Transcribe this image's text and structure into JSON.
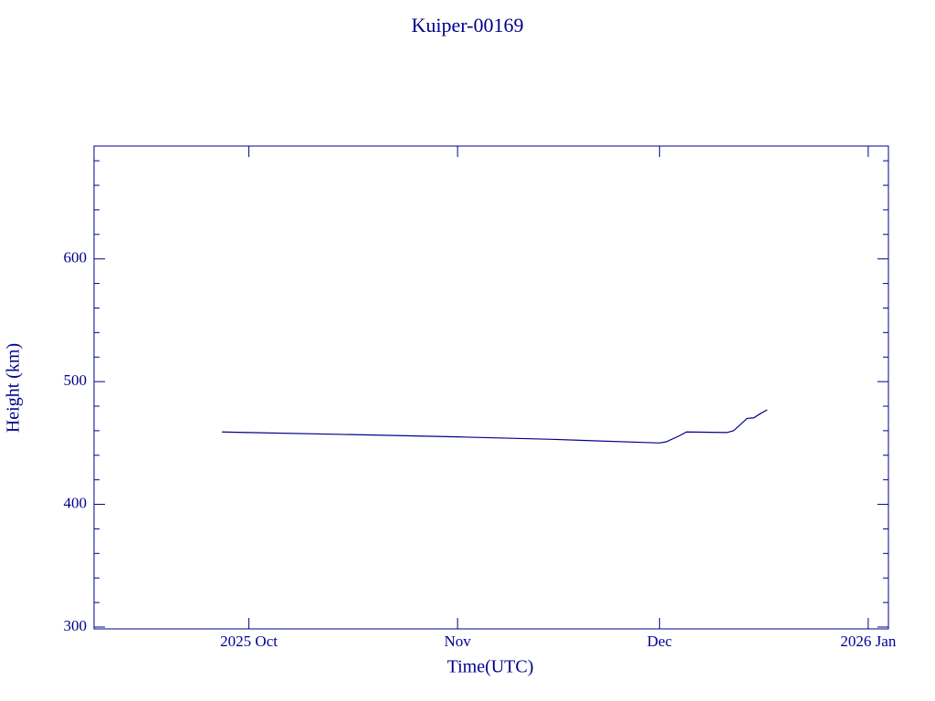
{
  "chart_data": {
    "type": "line",
    "title": "Kuiper-00169",
    "x_label": "Time(UTC)",
    "y_label": "Height (km)",
    "x": [
      "2025-09-27",
      "2025-10-01",
      "2025-10-15",
      "2025-11-01",
      "2025-11-15",
      "2025-12-01",
      "2025-12-02",
      "2025-12-04",
      "2025-12-05",
      "2025-12-11",
      "2025-12-12",
      "2025-12-13",
      "2025-12-14",
      "2025-12-15",
      "2025-12-16",
      "2025-12-17"
    ],
    "series": [
      {
        "name": "Height",
        "color": "#00008b",
        "values": [
          459,
          458.5,
          457,
          455,
          453,
          450,
          451,
          456,
          459,
          458.5,
          460,
          465,
          470,
          470.5,
          474,
          477
        ]
      }
    ],
    "xlim": [
      "2025-09-08",
      "2026-01-04"
    ],
    "xticks": [
      {
        "value": "2025-10",
        "label": "2025 Oct"
      },
      {
        "value": "2025-11",
        "label": "Nov"
      },
      {
        "value": "2025-12",
        "label": "Dec"
      },
      {
        "value": "2026-01",
        "label": "2026 Jan"
      }
    ],
    "ylim": [
      298.5,
      692
    ],
    "yticks": [
      300,
      400,
      500,
      600
    ],
    "yminorticks": [
      320,
      340,
      360,
      380,
      420,
      440,
      460,
      480,
      520,
      540,
      560,
      580,
      620,
      640,
      660,
      680
    ],
    "axis_color": "#00008b",
    "grid": false
  }
}
